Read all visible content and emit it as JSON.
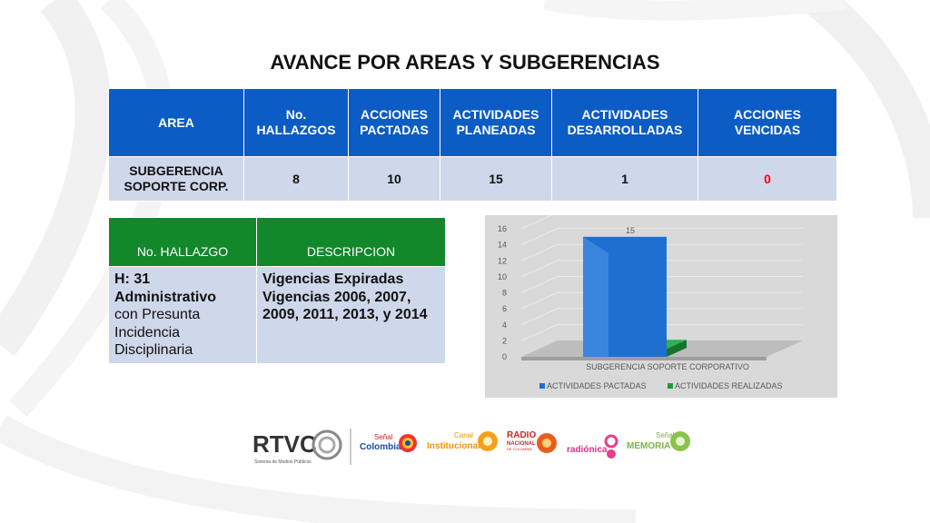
{
  "title": "AVANCE POR AREAS Y SUBGERENCIAS",
  "summary_table": {
    "headers": [
      "AREA",
      "No. HALLAZGOS",
      "ACCIONES PACTADAS",
      "ACTIVIDADES PLANEADAS",
      "ACTIVIDADES DESARROLLADAS",
      "ACCIONES VENCIDAS"
    ],
    "row": [
      "SUBGERENCIA SOPORTE CORP.",
      "8",
      "10",
      "15",
      "1",
      "0"
    ]
  },
  "findings_table": {
    "headers": [
      "No. HALLAZGO",
      "DESCRIPCION"
    ],
    "finding_id": "H: 31",
    "finding_type": "Administrativo",
    "finding_detail": "con Presunta Incidencia Disciplinaria",
    "description": "Vigencias Expiradas Vigencias 2006, 2007, 2009, 2011, 2013, y 2014"
  },
  "chart_data": {
    "type": "bar",
    "categories": [
      "SUBGERENCIA SOPORTE CORPORATIVO"
    ],
    "series": [
      {
        "name": "ACTIVIDADES PACTADAS",
        "values": [
          15
        ],
        "color": "#1f6fd1"
      },
      {
        "name": "ACTIVIDADES REALIZADAS",
        "values": [
          1
        ],
        "color": "#1e9a3c"
      }
    ],
    "data_labels": [
      "15"
    ],
    "ylim": [
      0,
      16
    ],
    "yticks": [
      "0",
      "2",
      "4",
      "6",
      "8",
      "10",
      "12",
      "14",
      "16"
    ],
    "legend": "bottom",
    "grid": true
  },
  "logos": {
    "rtvc": "RTVC",
    "rtvc_sub": "Sistema de Medios Públicos",
    "senal": "Señal",
    "colombia": "Colombia",
    "canal": "Canal",
    "institucional": "Institucional",
    "radio": "RADIO",
    "nacional": "NACIONAL",
    "de_colombia": "DE COLOMBIA",
    "radionica": "radiónica",
    "senal2": "Señal",
    "memoria": "MEMORIA"
  }
}
